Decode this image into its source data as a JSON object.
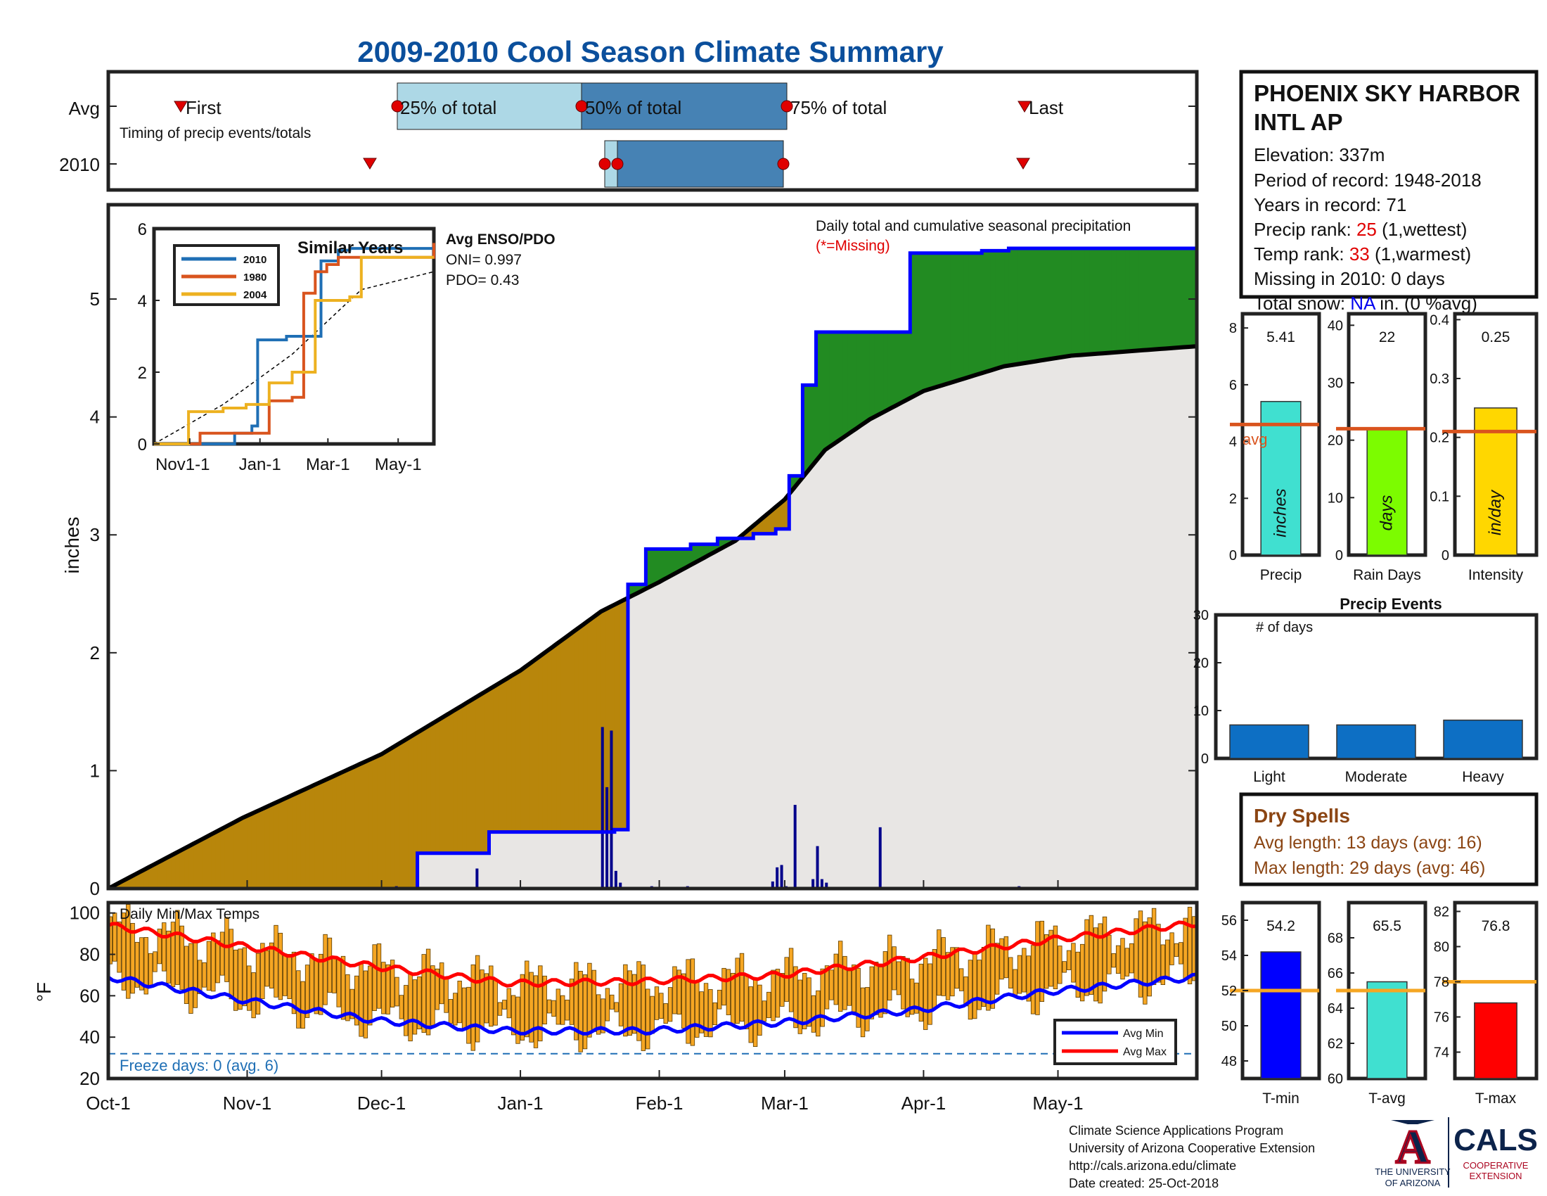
{
  "title": "2009-2010 Cool Season Climate Summary",
  "timing": {
    "row_labels": [
      "Avg",
      "2010"
    ],
    "caption": "Timing of precip events/totals",
    "first_label": "First",
    "last_label": "Last",
    "p25_label": "25% of total",
    "p50_label": "50% of total",
    "p75_label": "75% of total"
  },
  "station": {
    "name_line1": "PHOENIX SKY HARBOR",
    "name_line2": "INTL AP",
    "elevation": "Elevation: 337m",
    "period": "Period of record: 1948-2018",
    "years": "Years in record: 71",
    "precip_rank_prefix": "Precip rank: ",
    "precip_rank_value": "25",
    "precip_rank_suffix": " (1,wettest)",
    "temp_rank_prefix": "Temp rank: ",
    "temp_rank_value": "33",
    "temp_rank_suffix": " (1,warmest)",
    "missing": "Missing in 2010: 0 days",
    "snow_prefix": "Total snow: ",
    "snow_value": "NA",
    "snow_suffix": " in. (0 %avg)"
  },
  "main_plot": {
    "ylabel": "inches",
    "caption": "Daily total and cumulative seasonal precipitation",
    "missing_note": "(*=Missing)",
    "enso_title": "Avg ENSO/PDO",
    "oni": "ONI= 0.997",
    "pdo": "PDO= 0.43"
  },
  "inset": {
    "title": "Similar Years",
    "legend": [
      "2010",
      "1980",
      "2004"
    ],
    "xticks": [
      "Nov1-1",
      "Jan-1",
      "Mar-1",
      "May-1"
    ],
    "yticks": [
      "0",
      "2",
      "4",
      "6"
    ]
  },
  "temps": {
    "caption": "Daily Min/Max Temps",
    "ylabel": "°F",
    "freeze": "Freeze days: 0 (avg. 6)",
    "legend_min": "Avg Min",
    "legend_max": "Avg Max"
  },
  "precip_bars": [
    {
      "label": "Precip",
      "value_text": "5.41",
      "unit": "inches"
    },
    {
      "label": "Rain Days",
      "value_text": "22",
      "unit": "days"
    },
    {
      "label": "Intensity",
      "value_text": "0.25",
      "unit": "in/day"
    }
  ],
  "avg_marker_label": "avg",
  "events": {
    "title": "Precip Events",
    "caption": "# of days",
    "categories": [
      "Light",
      "Moderate",
      "Heavy"
    ]
  },
  "dry_spells": {
    "title": "Dry Spells",
    "avg_line": "Avg length: 13 days (avg: 16)",
    "max_line": "Max length: 29 days (avg: 46)"
  },
  "temp_bars": [
    {
      "label": "T-min",
      "value_text": "54.2"
    },
    {
      "label": "T-avg",
      "value_text": "65.5"
    },
    {
      "label": "T-max",
      "value_text": "76.8"
    }
  ],
  "footer": [
    "Climate Science Applications Program",
    "University of Arizona Cooperative Extension",
    "http://cals.arizona.edu/climate",
    " Date created: 25-Oct-2018"
  ],
  "logos": {
    "ua_line1": "THE UNIVERSITY",
    "ua_line2": "OF ARIZONA",
    "cals": "CALS",
    "cals_sub1": "COOPERATIVE",
    "cals_sub2": "EXTENSION"
  },
  "colors": {
    "observed_line": "#0000ff",
    "above_avg_fill": "#228b22",
    "below_avg_fill": "#b8860b",
    "avg_fill": "#e8e6e4",
    "temp_bar": "#f5a623",
    "avg_max": "#ff0000",
    "avg_min": "#0000ff",
    "title": "#0b4f9c",
    "dry_spells": "#8b4513"
  },
  "chart_data": [
    {
      "type": "area",
      "name": "cumulative-precip",
      "x_ticks": [
        "Oct-1",
        "Nov-1",
        "Dec-1",
        "Jan-1",
        "Feb-1",
        "Mar-1",
        "Apr-1",
        "May-1"
      ],
      "ylim": [
        0,
        5.8
      ],
      "yticks": [
        0,
        1,
        2,
        3,
        4,
        5
      ],
      "ylabel": "inches",
      "observed_cumulative": {
        "day": [
          0,
          68,
          69,
          84,
          85,
          112,
          113,
          115,
          116,
          119,
          120,
          128,
          130,
          135,
          136,
          143,
          144,
          148,
          149,
          151,
          152,
          154,
          155,
          157,
          158,
          178,
          179,
          194,
          195,
          200,
          201,
          243
        ],
        "inches": [
          0,
          0,
          0.3,
          0.3,
          0.48,
          0.48,
          0.5,
          0.5,
          2.58,
          2.58,
          2.88,
          2.88,
          2.92,
          2.92,
          2.97,
          2.97,
          3.01,
          3.01,
          3.05,
          3.05,
          3.5,
          3.5,
          4.27,
          4.27,
          4.72,
          4.72,
          5.39,
          5.39,
          5.41,
          5.41,
          5.43,
          5.43
        ]
      },
      "average_cumulative": {
        "day": [
          0,
          30,
          61,
          92,
          110,
          123,
          140,
          151,
          160,
          170,
          182,
          200,
          215,
          243
        ],
        "inches": [
          0,
          0.6,
          1.14,
          1.85,
          2.35,
          2.6,
          2.95,
          3.3,
          3.72,
          3.98,
          4.22,
          4.43,
          4.52,
          4.6
        ]
      },
      "daily_bars": {
        "day": [
          58,
          61,
          64,
          82,
          110,
          111,
          112,
          113,
          114,
          121,
          129,
          133,
          144,
          148,
          149,
          150,
          151,
          153,
          157,
          158,
          159,
          160,
          172,
          203
        ],
        "inches": [
          0.01,
          0.01,
          0.02,
          0.17,
          1.37,
          0.86,
          1.34,
          0.15,
          0.05,
          0.02,
          0.02,
          0.01,
          0.01,
          0.06,
          0.18,
          0.2,
          0.02,
          0.71,
          0.08,
          0.36,
          0.08,
          0.05,
          0.52,
          0.02
        ]
      }
    },
    {
      "type": "line",
      "name": "similar-years",
      "xticks": [
        "Nov1-1",
        "Jan-1",
        "Mar-1",
        "May-1"
      ],
      "ylim": [
        0,
        6
      ],
      "series": [
        {
          "name": "2010",
          "color": "#1f6fb5",
          "day": [
            0,
            55,
            70,
            85,
            90,
            115,
            145,
            160,
            170,
            243
          ],
          "values": [
            0,
            0,
            0.3,
            0.5,
            2.9,
            3.0,
            5.1,
            5.4,
            5.45,
            5.45
          ]
        },
        {
          "name": "1980",
          "color": "#d9541e",
          "day": [
            0,
            40,
            90,
            100,
            120,
            130,
            140,
            150,
            160,
            243
          ],
          "values": [
            0,
            0.3,
            0.3,
            1.2,
            1.3,
            4.2,
            4.8,
            5.0,
            5.2,
            5.6
          ]
        },
        {
          "name": "2004",
          "color": "#edb120",
          "day": [
            0,
            30,
            60,
            80,
            100,
            120,
            140,
            170,
            180,
            243
          ],
          "values": [
            0,
            0.9,
            1.0,
            1.1,
            1.7,
            2.0,
            4.0,
            4.1,
            5.2,
            5.2
          ]
        }
      ],
      "average_dashed": {
        "day": [
          0,
          60,
          120,
          180,
          243
        ],
        "values": [
          0,
          1.1,
          2.5,
          4.3,
          4.8
        ]
      }
    },
    {
      "type": "bar",
      "name": "daily-temps",
      "ylim": [
        20,
        105
      ],
      "yticks": [
        20,
        40,
        60,
        80,
        100
      ],
      "avg_max": {
        "day": [
          0,
          30,
          60,
          90,
          120,
          150,
          180,
          210,
          243
        ],
        "values": [
          94,
          84,
          74,
          66,
          67,
          70,
          78,
          87,
          95
        ]
      },
      "avg_min": {
        "day": [
          0,
          30,
          60,
          90,
          120,
          150,
          180,
          210,
          243
        ],
        "values": [
          69,
          58,
          48,
          43,
          43,
          47,
          53,
          62,
          69
        ]
      },
      "freeze_line": 32
    },
    {
      "type": "bar",
      "name": "precip-summary",
      "panels": [
        {
          "label": "Precip",
          "value": 5.41,
          "avg": 4.6,
          "ylim": [
            0,
            8.5
          ],
          "yticks": [
            0,
            2,
            4,
            6,
            8
          ],
          "color": "#40e0d0"
        },
        {
          "label": "Rain Days",
          "value": 22,
          "avg": 22,
          "ylim": [
            0,
            42
          ],
          "yticks": [
            0,
            10,
            20,
            30,
            40
          ],
          "color": "#7cfc00"
        },
        {
          "label": "Intensity",
          "value": 0.25,
          "avg": 0.21,
          "ylim": [
            0,
            0.41
          ],
          "yticks": [
            0,
            0.1,
            0.2,
            0.3,
            0.4
          ],
          "color": "#ffd700"
        }
      ]
    },
    {
      "type": "bar",
      "name": "precip-events",
      "categories": [
        "Light",
        "Moderate",
        "Heavy"
      ],
      "values": [
        7,
        7,
        8
      ],
      "ylim": [
        0,
        30
      ],
      "yticks": [
        0,
        10,
        20,
        30
      ]
    },
    {
      "type": "bar",
      "name": "temp-summary",
      "panels": [
        {
          "label": "T-min",
          "value": 54.2,
          "avg": 52,
          "ylim": [
            47,
            57
          ],
          "yticks": [
            48,
            50,
            52,
            54,
            56
          ],
          "color": "#0000ff"
        },
        {
          "label": "T-avg",
          "value": 65.5,
          "avg": 65,
          "ylim": [
            60,
            70
          ],
          "yticks": [
            60,
            62,
            64,
            66,
            68
          ],
          "color": "#40e0d0"
        },
        {
          "label": "T-max",
          "value": 76.8,
          "avg": 78,
          "ylim": [
            72.5,
            82.5
          ],
          "yticks": [
            74,
            76,
            78,
            80,
            82
          ],
          "color": "#ff0000"
        }
      ]
    }
  ]
}
